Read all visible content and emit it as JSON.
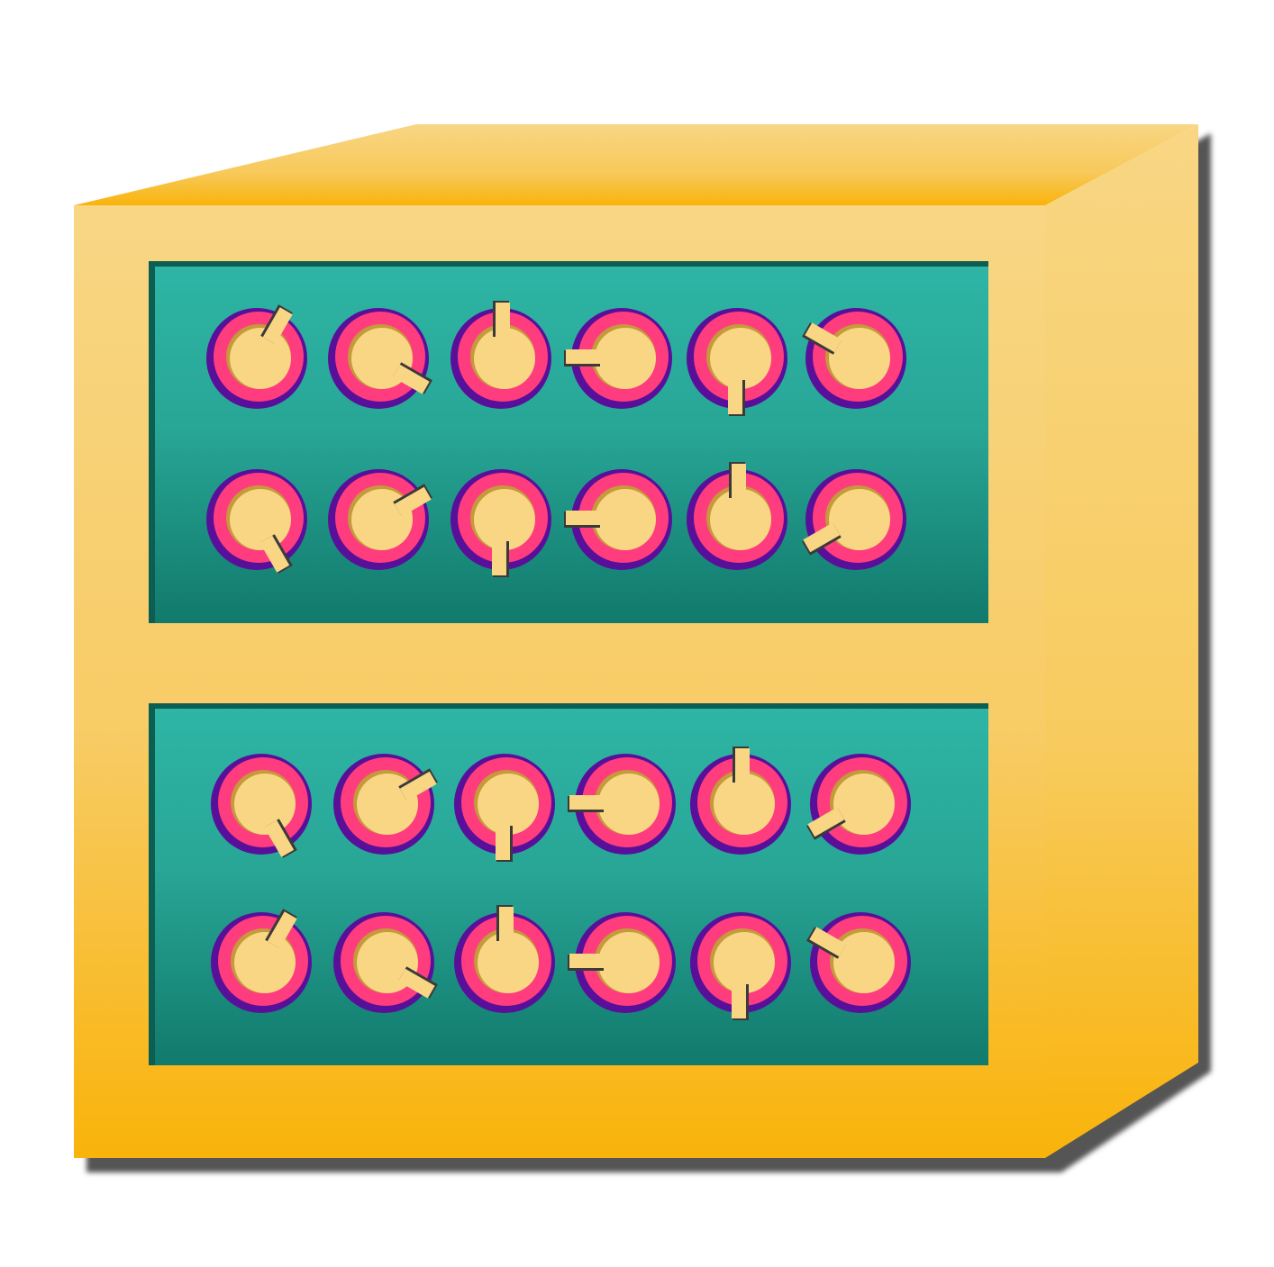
{
  "colors": {
    "cabinet_front_top": "#f8d684",
    "cabinet_front_bottom": "#f9b30a",
    "cabinet_top_face_back": "#f8d684",
    "cabinet_top_face_front": "#f9b30a",
    "cabinet_side": "#f8d684",
    "shadow": "#555555",
    "panel_top": "#2eb5a5",
    "panel_bottom": "#117a6c",
    "knob_outer": "#58109a",
    "knob_ring": "#ff3c7e",
    "knob_face": "#f8d684",
    "pointer_shadow": "#3a3a3a"
  },
  "panels": [
    {
      "name": "upper-panel",
      "rows": [
        {
          "knob_pointer_angles": [
            30,
            120,
            0,
            270,
            180,
            300
          ]
        },
        {
          "knob_pointer_angles": [
            150,
            60,
            180,
            270,
            0,
            240
          ]
        }
      ]
    },
    {
      "name": "lower-panel",
      "rows": [
        {
          "knob_pointer_angles": [
            150,
            60,
            180,
            270,
            0,
            240
          ]
        },
        {
          "knob_pointer_angles": [
            30,
            120,
            0,
            270,
            180,
            300
          ]
        }
      ]
    }
  ]
}
